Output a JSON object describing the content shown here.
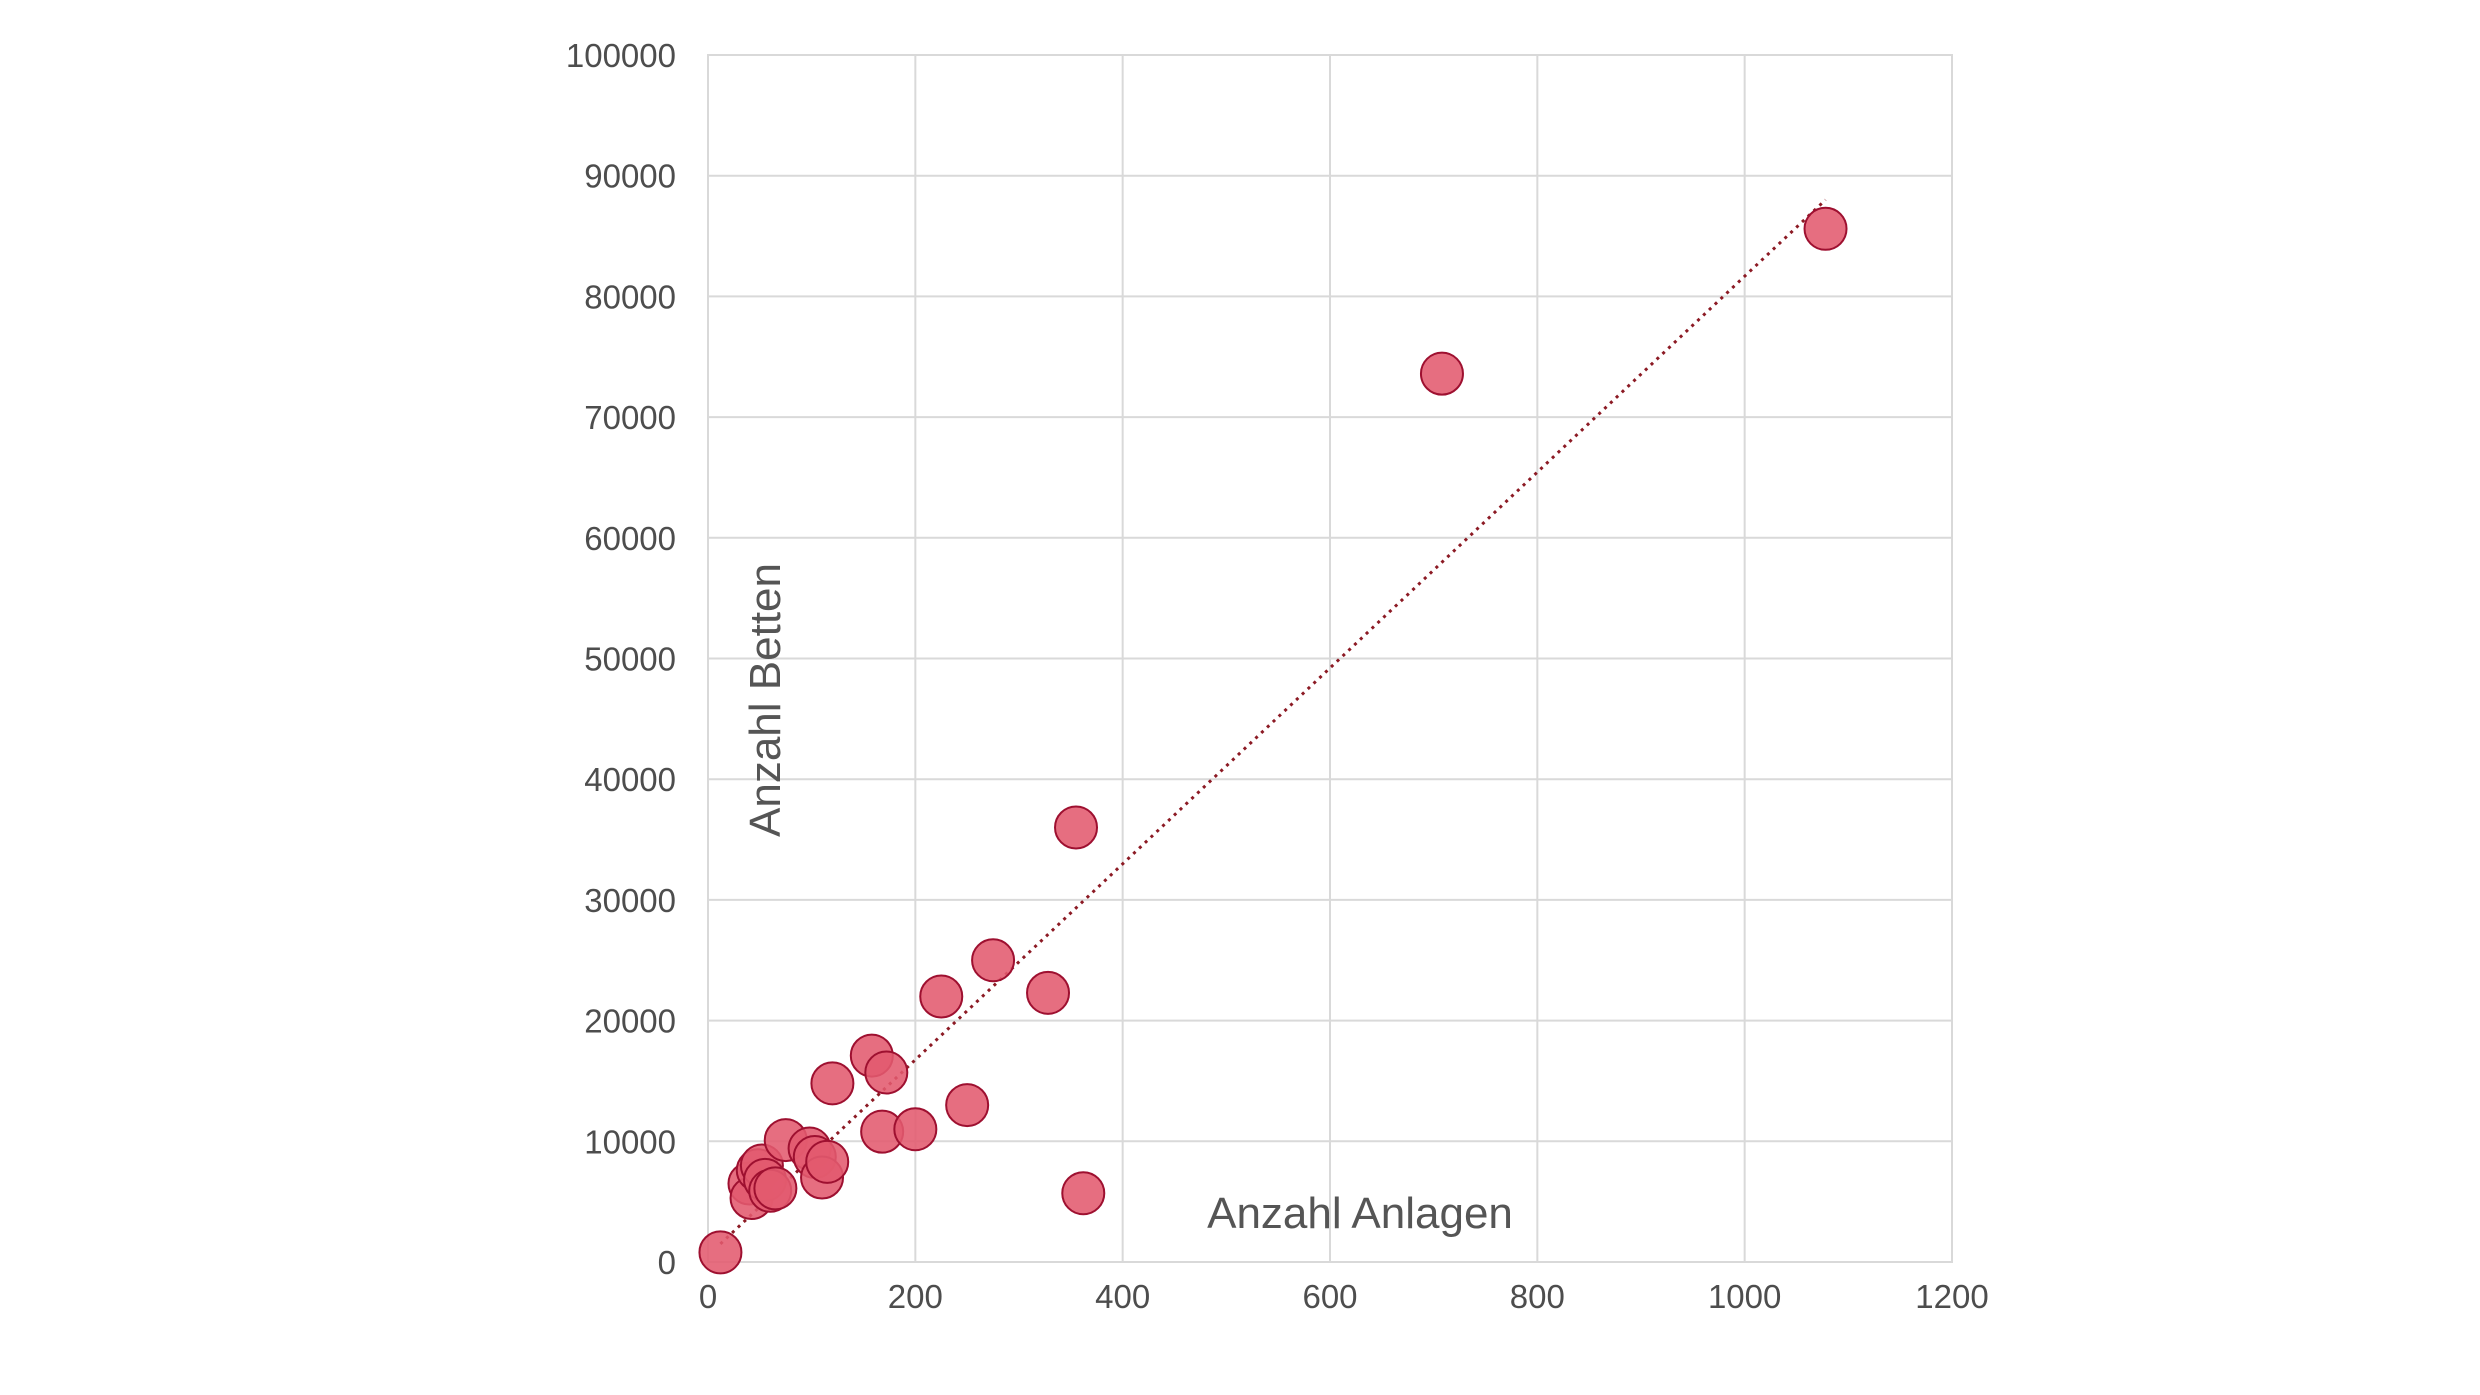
{
  "chart_data": {
    "type": "scatter",
    "xlabel": "Anzahl Anlagen",
    "ylabel": "Anzahl Betten",
    "xlim": [
      0,
      1200
    ],
    "ylim": [
      0,
      100000
    ],
    "x_ticks": [
      "0",
      "200",
      "400",
      "600",
      "800",
      "1000",
      "1200"
    ],
    "y_ticks": [
      "0",
      "10000",
      "20000",
      "30000",
      "40000",
      "50000",
      "60000",
      "70000",
      "80000",
      "90000",
      "100000"
    ],
    "grid": true,
    "legend": "none",
    "colors": {
      "marker": "#e25a6e",
      "marker_edge": "#9e1030",
      "trendline": "#8c1a24",
      "grid": "#d9d9d9",
      "text": "#4d4d4d"
    },
    "trendline": {
      "style": "dotted",
      "x": [
        12,
        1078
      ],
      "y": [
        1500,
        88000
      ]
    },
    "points": [
      {
        "x": 12,
        "y": 800
      },
      {
        "x": 40,
        "y": 6500
      },
      {
        "x": 42,
        "y": 5300
      },
      {
        "x": 48,
        "y": 7600
      },
      {
        "x": 52,
        "y": 8000
      },
      {
        "x": 55,
        "y": 6800
      },
      {
        "x": 60,
        "y": 5900
      },
      {
        "x": 65,
        "y": 6100
      },
      {
        "x": 75,
        "y": 10100
      },
      {
        "x": 98,
        "y": 9400
      },
      {
        "x": 103,
        "y": 8700
      },
      {
        "x": 110,
        "y": 7000
      },
      {
        "x": 115,
        "y": 8300
      },
      {
        "x": 120,
        "y": 14800
      },
      {
        "x": 158,
        "y": 17100
      },
      {
        "x": 168,
        "y": 10800
      },
      {
        "x": 172,
        "y": 15700
      },
      {
        "x": 200,
        "y": 11000
      },
      {
        "x": 225,
        "y": 22000
      },
      {
        "x": 250,
        "y": 13000
      },
      {
        "x": 275,
        "y": 25000
      },
      {
        "x": 328,
        "y": 22300
      },
      {
        "x": 355,
        "y": 36000
      },
      {
        "x": 362,
        "y": 5700
      },
      {
        "x": 708,
        "y": 73600
      },
      {
        "x": 1078,
        "y": 85600
      }
    ]
  }
}
